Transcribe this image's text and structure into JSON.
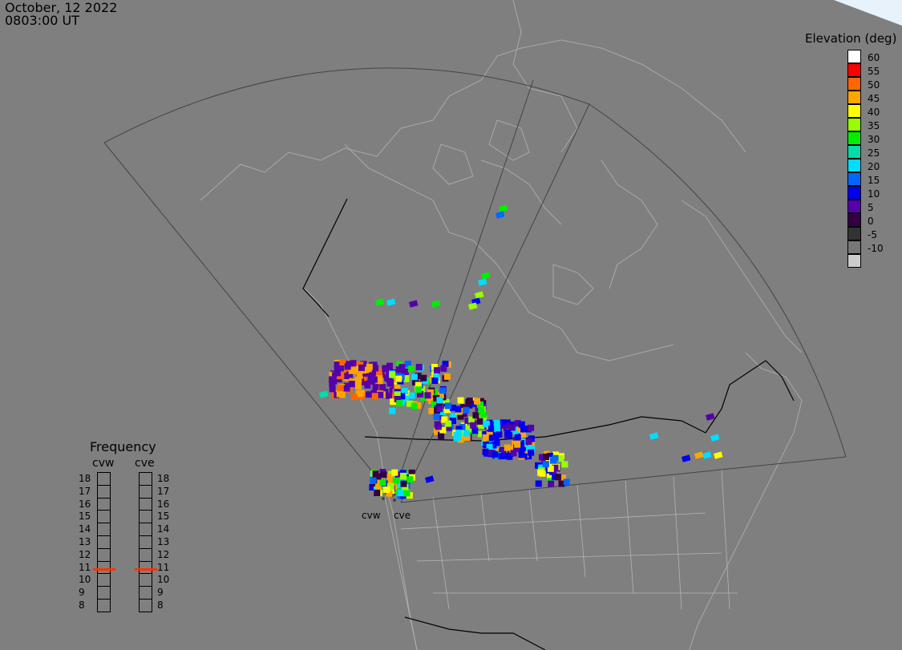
{
  "header": {
    "date": "October, 12 2022",
    "time": "0803:00 UT"
  },
  "legend": {
    "title": "Elevation (deg)",
    "entries": [
      {
        "label": "60",
        "color": "#ffffff"
      },
      {
        "label": "55",
        "color": "#ff0000"
      },
      {
        "label": "50",
        "color": "#ff6600"
      },
      {
        "label": "45",
        "color": "#ffa500"
      },
      {
        "label": "40",
        "color": "#ffff00"
      },
      {
        "label": "35",
        "color": "#99ff00"
      },
      {
        "label": "30",
        "color": "#00ee00"
      },
      {
        "label": "25",
        "color": "#00ddaa"
      },
      {
        "label": "20",
        "color": "#00ddff"
      },
      {
        "label": "15",
        "color": "#0066ff"
      },
      {
        "label": "10",
        "color": "#0000ee"
      },
      {
        "label": "5",
        "color": "#5500aa"
      },
      {
        "label": "0",
        "color": "#330044"
      },
      {
        "label": "-5",
        "color": "#333333"
      },
      {
        "label": "-10",
        "color": "#777777"
      },
      {
        "label": "",
        "color": "#cccccc"
      }
    ]
  },
  "frequency": {
    "title": "Frequency",
    "radars": [
      {
        "id": "cvw",
        "label": "cvw",
        "value": 10.9
      },
      {
        "id": "cve",
        "label": "cve",
        "value": 10.9
      }
    ],
    "ticks": [
      "18",
      "17",
      "16",
      "15",
      "14",
      "13",
      "12",
      "11",
      "10",
      "9",
      "8"
    ],
    "marker_color": "#ff3300"
  },
  "sites": [
    {
      "id": "cvw",
      "label": "cvw"
    },
    {
      "id": "cve",
      "label": "cve"
    }
  ],
  "colors": {
    "background": "#7f7f7f",
    "land_lines": "#a9a9a9",
    "fov_lines": "#444444",
    "borders": "#000000"
  }
}
